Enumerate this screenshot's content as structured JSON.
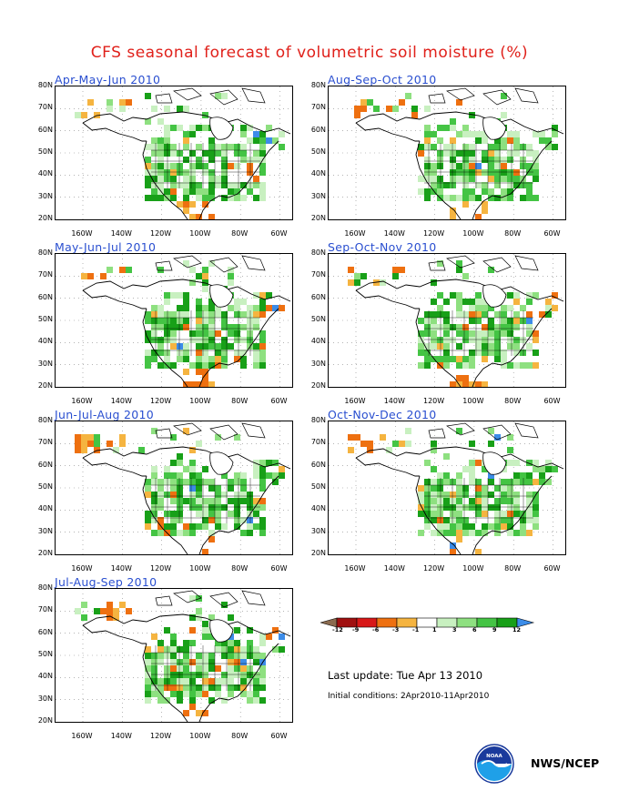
{
  "title": "CFS seasonal forecast of volumetric soil moisture (%)",
  "panels": [
    {
      "title": "Apr-May-Jun 2010"
    },
    {
      "title": "Aug-Sep-Oct 2010"
    },
    {
      "title": "May-Jun-Jul 2010"
    },
    {
      "title": "Sep-Oct-Nov 2010"
    },
    {
      "title": "Jun-Jul-Aug 2010"
    },
    {
      "title": "Oct-Nov-Dec 2010"
    },
    {
      "title": "Jul-Aug-Sep 2010"
    }
  ],
  "axes": {
    "lat_ticks": [
      "80N",
      "70N",
      "60N",
      "50N",
      "40N",
      "30N",
      "20N"
    ],
    "lon_ticks": [
      "160W",
      "140W",
      "120W",
      "100W",
      "80W",
      "60W"
    ]
  },
  "legend": {
    "labels": [
      "-12",
      "-9",
      "-6",
      "-3",
      "-1",
      "1",
      "3",
      "6",
      "9",
      "12"
    ],
    "colors": [
      "#8b6b4f",
      "#a01010",
      "#d81818",
      "#ee7010",
      "#f5b440",
      "#ffffff",
      "#c8f0c0",
      "#8ee080",
      "#44c444",
      "#18a018",
      "#3c8ce8"
    ]
  },
  "footer": {
    "last_update": "Last update: Tue Apr 13 2010",
    "initial_conditions": "Initial conditions: 2Apr2010-11Apr2010",
    "agency": "NWS/NCEP"
  }
}
